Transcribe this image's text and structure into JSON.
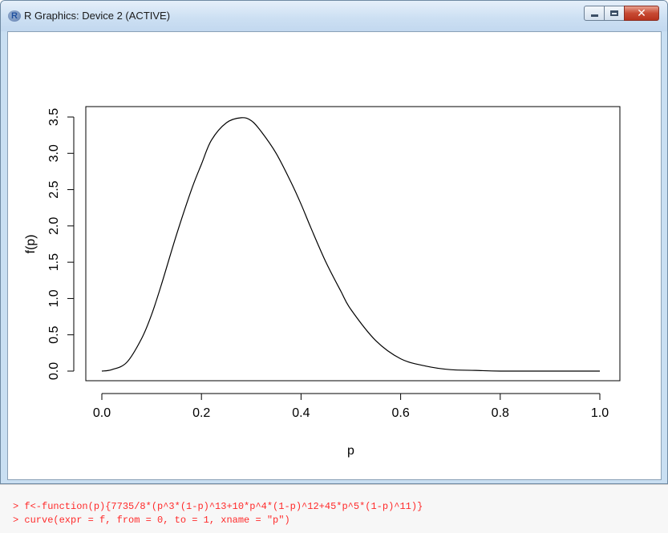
{
  "window": {
    "title": "R Graphics: Device 2 (ACTIVE)",
    "app_icon": "R"
  },
  "chart_data": {
    "type": "line",
    "xlabel": "p",
    "ylabel": "f(p)",
    "xlim": [
      0,
      1
    ],
    "ylim": [
      0,
      3.5
    ],
    "x_ticks": [
      "0.0",
      "0.2",
      "0.4",
      "0.6",
      "0.8",
      "1.0"
    ],
    "y_ticks": [
      "0.0",
      "0.5",
      "1.0",
      "1.5",
      "2.0",
      "2.5",
      "3.0",
      "3.5"
    ],
    "grid": false,
    "series": [
      {
        "x": [
          0,
          0.02,
          0.05,
          0.08,
          0.1,
          0.12,
          0.15,
          0.18,
          0.2,
          0.22,
          0.25,
          0.28,
          0.3,
          0.32,
          0.35,
          0.38,
          0.4,
          0.42,
          0.45,
          0.48,
          0.5,
          0.55,
          0.6,
          0.65,
          0.7,
          0.75,
          0.8,
          0.9,
          1.0
        ],
        "y": [
          0,
          0.02,
          0.12,
          0.45,
          0.78,
          1.2,
          1.88,
          2.5,
          2.85,
          3.18,
          3.42,
          3.49,
          3.45,
          3.3,
          3.0,
          2.6,
          2.3,
          1.97,
          1.5,
          1.1,
          0.85,
          0.42,
          0.17,
          0.07,
          0.02,
          0.01,
          0,
          0,
          0
        ]
      }
    ]
  },
  "console": {
    "lines": [
      "> f<-function(p){7735/8*(p^3*(1-p)^13+10*p^4*(1-p)^12+45*p^5*(1-p)^11)}",
      "> curve(expr = f, from = 0, to = 1, xname = \"p\")"
    ]
  }
}
